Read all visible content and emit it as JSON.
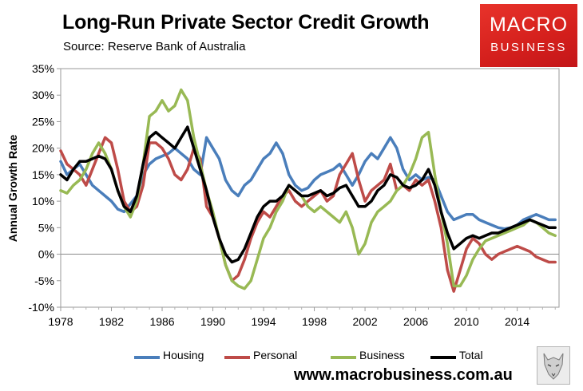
{
  "header": {
    "title": "Long-Run Private Sector Credit Growth",
    "subtitle": "Source: Reserve Bank of Australia"
  },
  "logo": {
    "line1": "MACRO",
    "line2": "BUSINESS"
  },
  "footer": {
    "url": "www.macrobusiness.com.au"
  },
  "chart_data": {
    "type": "line",
    "title": "Long-Run Private Sector Credit Growth",
    "ylabel": "Annual Growth Rate",
    "xlabel": "",
    "xlim": [
      1978,
      2017.3
    ],
    "ylim": [
      -10,
      35
    ],
    "xticks": [
      1978,
      1982,
      1986,
      1990,
      1994,
      1998,
      2002,
      2006,
      2010,
      2014
    ],
    "yticks": [
      -10,
      -5,
      0,
      5,
      10,
      15,
      20,
      25,
      30,
      35
    ],
    "ytick_labels": [
      "-10%",
      "-5%",
      "0%",
      "5%",
      "10%",
      "15%",
      "20%",
      "25%",
      "30%",
      "35%"
    ],
    "grid": false,
    "legend": "bottom",
    "series": [
      {
        "name": "Housing",
        "color": "#4a7ebb",
        "x": [
          1978,
          1978.5,
          1979,
          1979.5,
          1980,
          1980.5,
          1981,
          1981.5,
          1982,
          1982.5,
          1983,
          1983.5,
          1984,
          1984.5,
          1985,
          1985.5,
          1986,
          1986.5,
          1987,
          1987.5,
          1988,
          1988.5,
          1989,
          1989.5,
          1990,
          1990.5,
          1991,
          1991.5,
          1992,
          1992.5,
          1993,
          1993.5,
          1994,
          1994.5,
          1995,
          1995.5,
          1996,
          1996.5,
          1997,
          1997.5,
          1998,
          1998.5,
          1999,
          1999.5,
          2000,
          2000.5,
          2001,
          2001.5,
          2002,
          2002.5,
          2003,
          2003.5,
          2004,
          2004.5,
          2005,
          2005.5,
          2006,
          2006.5,
          2007,
          2007.5,
          2008,
          2008.5,
          2009,
          2009.5,
          2010,
          2010.5,
          2011,
          2011.5,
          2012,
          2012.5,
          2013,
          2013.5,
          2014,
          2014.5,
          2015,
          2015.5,
          2016,
          2016.5,
          2017
        ],
        "values": [
          17.5,
          15,
          16,
          17,
          15,
          13,
          12,
          11,
          10,
          8.5,
          8,
          9.5,
          11,
          15,
          17,
          18,
          18.5,
          19,
          20,
          19,
          18,
          16,
          15,
          22,
          20,
          18,
          14,
          12,
          11,
          13,
          14,
          16,
          18,
          19,
          21,
          19,
          15,
          13,
          12,
          12.5,
          14,
          15,
          15.5,
          16,
          17,
          15,
          13,
          15,
          17.5,
          19,
          18,
          20,
          22,
          20,
          16,
          14,
          15,
          14,
          14.5,
          14,
          11,
          8,
          6.5,
          7,
          7.5,
          7.5,
          6.5,
          6,
          5.5,
          5,
          4.8,
          5,
          5.5,
          6.5,
          7,
          7.5,
          7,
          6.5,
          6.5
        ]
      },
      {
        "name": "Personal",
        "color": "#be4b48",
        "x": [
          1978,
          1978.5,
          1979,
          1979.5,
          1980,
          1980.5,
          1981,
          1981.5,
          1982,
          1982.5,
          1983,
          1983.5,
          1984,
          1984.5,
          1985,
          1985.5,
          1986,
          1986.5,
          1987,
          1987.5,
          1988,
          1988.5,
          1989,
          1989.5,
          1990,
          1990.5,
          1991,
          1991.5,
          1992,
          1992.5,
          1993,
          1993.5,
          1994,
          1994.5,
          1995,
          1995.5,
          1996,
          1996.5,
          1997,
          1997.5,
          1998,
          1998.5,
          1999,
          1999.5,
          2000,
          2000.5,
          2001,
          2001.5,
          2002,
          2002.5,
          2003,
          2003.5,
          2004,
          2004.5,
          2005,
          2005.5,
          2006,
          2006.5,
          2007,
          2007.5,
          2008,
          2008.5,
          2009,
          2009.5,
          2010,
          2010.5,
          2011,
          2011.5,
          2012,
          2012.5,
          2013,
          2013.5,
          2014,
          2014.5,
          2015,
          2015.5,
          2016,
          2016.5,
          2017
        ],
        "values": [
          19.5,
          17,
          16,
          15,
          13,
          16,
          19,
          22,
          21,
          16,
          10,
          8,
          9,
          13,
          21,
          21,
          20,
          18,
          15,
          14,
          16,
          20,
          18,
          9,
          7,
          3,
          -2,
          -5,
          -4,
          -1,
          3,
          6,
          8,
          7,
          9,
          11,
          12,
          10,
          9,
          10,
          11,
          12,
          10,
          11,
          15,
          17,
          19,
          14,
          10,
          12,
          13,
          14,
          17,
          12,
          13,
          12,
          14,
          13,
          14,
          10,
          5,
          -3,
          -7,
          -3,
          1,
          3,
          2,
          0,
          -1,
          0,
          0.5,
          1,
          1.5,
          1,
          0.5,
          -0.5,
          -1,
          -1.5,
          -1.5
        ]
      },
      {
        "name": "Business",
        "color": "#98b954",
        "x": [
          1978,
          1978.5,
          1979,
          1979.5,
          1980,
          1980.5,
          1981,
          1981.5,
          1982,
          1982.5,
          1983,
          1983.5,
          1984,
          1984.5,
          1985,
          1985.5,
          1986,
          1986.5,
          1987,
          1987.5,
          1988,
          1988.5,
          1989,
          1989.5,
          1990,
          1990.5,
          1991,
          1991.5,
          1992,
          1992.5,
          1993,
          1993.5,
          1994,
          1994.5,
          1995,
          1995.5,
          1996,
          1996.5,
          1997,
          1997.5,
          1998,
          1998.5,
          1999,
          1999.5,
          2000,
          2000.5,
          2001,
          2001.5,
          2002,
          2002.5,
          2003,
          2003.5,
          2004,
          2004.5,
          2005,
          2005.5,
          2006,
          2006.5,
          2007,
          2007.5,
          2008,
          2008.5,
          2009,
          2009.5,
          2010,
          2010.5,
          2011,
          2011.5,
          2012,
          2012.5,
          2013,
          2013.5,
          2014,
          2014.5,
          2015,
          2015.5,
          2016,
          2016.5,
          2017
        ],
        "values": [
          12,
          11.5,
          13,
          14,
          16,
          19,
          21,
          19,
          16,
          12,
          9,
          7,
          10,
          17,
          26,
          27,
          29,
          27,
          28,
          31,
          29,
          22,
          17,
          12,
          8,
          3,
          -2,
          -5,
          -6,
          -6.5,
          -5,
          -1,
          3,
          5,
          8,
          10,
          13,
          12,
          11,
          9,
          8,
          9,
          8,
          7,
          6,
          8,
          5,
          0,
          2,
          6,
          8,
          9,
          10,
          12,
          13,
          15,
          18,
          22,
          23,
          15,
          8,
          2,
          -6,
          -6,
          -4,
          -1,
          1,
          2.5,
          3,
          3.5,
          4,
          4.5,
          5,
          5.5,
          6.5,
          6,
          5,
          4,
          3.5
        ]
      },
      {
        "name": "Total",
        "color": "#000000",
        "x": [
          1978,
          1978.5,
          1979,
          1979.5,
          1980,
          1980.5,
          1981,
          1981.5,
          1982,
          1982.5,
          1983,
          1983.5,
          1984,
          1984.5,
          1985,
          1985.5,
          1986,
          1986.5,
          1987,
          1987.5,
          1988,
          1988.5,
          1989,
          1989.5,
          1990,
          1990.5,
          1991,
          1991.5,
          1992,
          1992.5,
          1993,
          1993.5,
          1994,
          1994.5,
          1995,
          1995.5,
          1996,
          1996.5,
          1997,
          1997.5,
          1998,
          1998.5,
          1999,
          1999.5,
          2000,
          2000.5,
          2001,
          2001.5,
          2002,
          2002.5,
          2003,
          2003.5,
          2004,
          2004.5,
          2005,
          2005.5,
          2006,
          2006.5,
          2007,
          2007.5,
          2008,
          2008.5,
          2009,
          2009.5,
          2010,
          2010.5,
          2011,
          2011.5,
          2012,
          2012.5,
          2013,
          2013.5,
          2014,
          2014.5,
          2015,
          2015.5,
          2016,
          2016.5,
          2017
        ],
        "values": [
          15,
          14,
          16,
          17.5,
          17.5,
          18,
          18.5,
          18,
          16,
          12,
          9,
          8,
          11,
          17,
          22,
          23,
          22,
          21,
          20,
          22,
          24,
          20,
          16,
          12,
          7,
          3,
          0,
          -1.5,
          -1,
          1,
          4,
          7,
          9,
          10,
          10,
          11,
          13,
          12,
          11,
          11,
          11.5,
          12,
          11,
          11.5,
          12.5,
          13,
          11,
          9,
          9,
          10,
          12,
          13,
          15,
          14.5,
          13,
          12.5,
          13,
          14,
          16,
          13,
          8,
          4,
          1,
          2,
          3,
          3.5,
          3,
          3.5,
          4,
          4,
          4.5,
          5,
          5.5,
          6,
          6.5,
          6,
          5.5,
          5,
          5
        ]
      }
    ]
  }
}
